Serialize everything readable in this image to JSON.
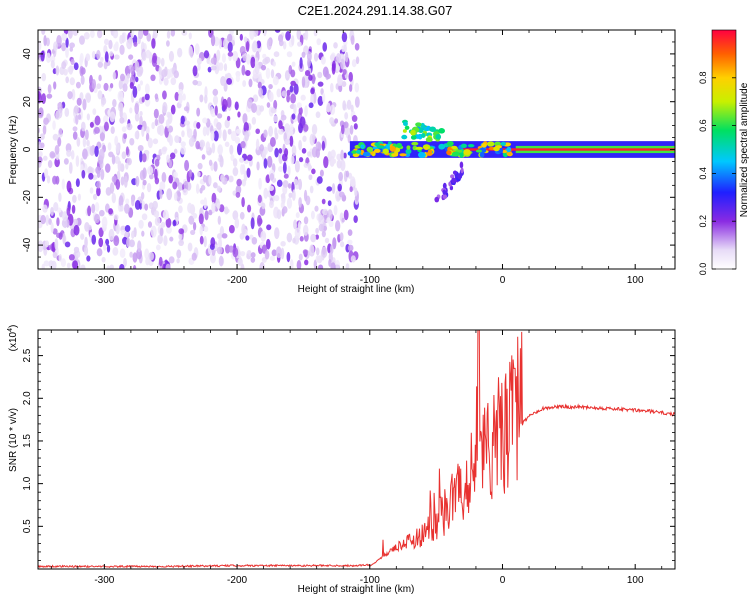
{
  "title": "C2E1.2024.291.14.38.G07",
  "chart_data": [
    {
      "type": "heatmap",
      "title": "C2E1.2024.291.14.38.G07",
      "xlabel": "Height of straight line (km)",
      "ylabel": "Frequency (Hz)",
      "xlim": [
        -350,
        130
      ],
      "ylim": [
        -50,
        50
      ],
      "xticks": [
        -300,
        -200,
        -100,
        0,
        100
      ],
      "yticks": [
        -40,
        -20,
        0,
        20,
        40
      ],
      "colorbar": {
        "label": "Normalized spectral amplitude",
        "range": [
          0,
          1
        ],
        "ticks": [
          0.0,
          0.2,
          0.4,
          0.6,
          0.8
        ],
        "tick_labels": [
          "0.0",
          "0.2",
          "0.4",
          "0.6",
          "0.8"
        ]
      },
      "features": [
        {
          "x_range": [
            -350,
            -115
          ],
          "y_range": [
            -50,
            50
          ],
          "amplitude": [
            0.05,
            0.25
          ],
          "description": "diffuse noise"
        },
        {
          "x_range": [
            -115,
            130
          ],
          "y_center": 0,
          "amplitude": [
            0.3,
            1.0
          ],
          "description": "carrier line"
        },
        {
          "x_range": [
            -75,
            -45
          ],
          "y_range": [
            4,
            12
          ],
          "amplitude": [
            0.4,
            0.7
          ]
        },
        {
          "x_range": [
            -50,
            -30
          ],
          "y_range": [
            -30,
            -5
          ],
          "amplitude": [
            0.15,
            0.3
          ]
        }
      ]
    },
    {
      "type": "line",
      "xlabel": "Height of straight line (km)",
      "ylabel": "SNR (10 * v/v)",
      "y_multiplier": "(x10^4)",
      "xlim": [
        -350,
        130
      ],
      "ylim": [
        0,
        2.8
      ],
      "xticks": [
        -300,
        -200,
        -100,
        0,
        100
      ],
      "yticks": [
        0.5,
        1.0,
        1.5,
        2.0,
        2.5
      ],
      "ytick_labels": [
        "0.5",
        "1.0",
        "1.5",
        "2.0",
        "2.5"
      ],
      "series": [
        {
          "color": "#e8312f",
          "x": [
            -350,
            -300,
            -250,
            -200,
            -150,
            -110,
            -100,
            -90,
            -80,
            -70,
            -60,
            -50,
            -40,
            -30,
            -25,
            -20,
            -18,
            -15,
            -10,
            -5,
            0,
            5,
            10,
            15,
            20,
            30,
            40,
            50,
            60,
            70,
            80,
            90,
            100,
            110,
            120,
            130
          ],
          "y": [
            0.03,
            0.03,
            0.03,
            0.04,
            0.04,
            0.04,
            0.05,
            0.2,
            0.3,
            0.35,
            0.4,
            0.5,
            0.6,
            0.8,
            0.9,
            1.0,
            2.8,
            1.1,
            1.2,
            1.3,
            1.3,
            1.4,
            1.5,
            1.7,
            1.8,
            1.88,
            1.9,
            1.9,
            1.9,
            1.89,
            1.88,
            1.87,
            1.86,
            1.85,
            1.83,
            1.81
          ]
        }
      ]
    }
  ]
}
